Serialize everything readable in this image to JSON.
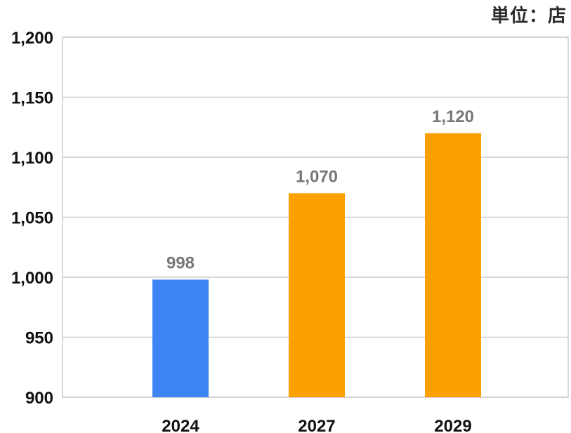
{
  "unit_label": "単位：店",
  "colors": {
    "bar_highlight": "#3d85f5",
    "bar_default": "#fca000",
    "grid": "#cccccc",
    "axis_text": "#111111",
    "data_label": "#777777"
  },
  "chart_data": {
    "type": "bar",
    "title": "",
    "xlabel": "",
    "ylabel": "",
    "categories": [
      "2024",
      "2027",
      "2029"
    ],
    "values": [
      998,
      1070,
      1120
    ],
    "data_labels": [
      "998",
      "1,070",
      "1,120"
    ],
    "ylim": [
      900,
      1200
    ],
    "yticks": [
      900,
      950,
      1000,
      1050,
      1100,
      1150,
      1200
    ],
    "ytick_labels": [
      "900",
      "950",
      "1,000",
      "1,050",
      "1,100",
      "1,150",
      "1,200"
    ],
    "grid": true,
    "legend": "none",
    "bar_colors": [
      "#3d85f5",
      "#fca000",
      "#fca000"
    ]
  }
}
